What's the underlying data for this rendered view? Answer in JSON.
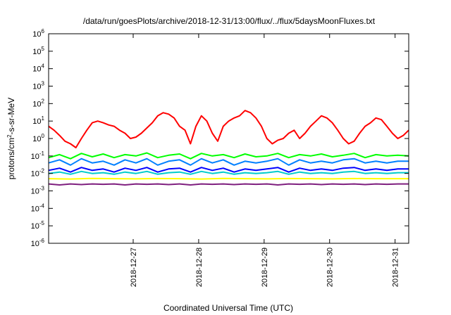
{
  "chart_data": {
    "type": "line",
    "title": "/data/run/goesPlots/archive/2018-12-31/13:00/flux/../flux/5daysMoonFluxes.txt",
    "xlabel": "Coordinated Universal Time (UTC)",
    "ylabel_parts": [
      "protons/cm",
      "2",
      "-s-sr-MeV"
    ],
    "y_scale": "log",
    "ylim": [
      1e-06,
      1000000.0
    ],
    "xlim_hours": [
      -31,
      101
    ],
    "y_ticks": [
      {
        "base": "10",
        "exp": "-6",
        "value": -6
      },
      {
        "base": "10",
        "exp": "-5",
        "value": -5
      },
      {
        "base": "10",
        "exp": "-4",
        "value": -4
      },
      {
        "base": "10",
        "exp": "-3",
        "value": -3
      },
      {
        "base": "10",
        "exp": "-2",
        "value": -2
      },
      {
        "base": "10",
        "exp": "-1",
        "value": -1
      },
      {
        "base": "10",
        "exp": "0",
        "value": 0
      },
      {
        "base": "10",
        "exp": "1",
        "value": 1
      },
      {
        "base": "10",
        "exp": "2",
        "value": 2
      },
      {
        "base": "10",
        "exp": "3",
        "value": 3
      },
      {
        "base": "10",
        "exp": "4",
        "value": 4
      },
      {
        "base": "10",
        "exp": "5",
        "value": 5
      },
      {
        "base": "10",
        "exp": "6",
        "value": 6
      }
    ],
    "x_ticks": [
      {
        "label": "2018-12-27",
        "hour": 0
      },
      {
        "label": "2018-12-28",
        "hour": 24
      },
      {
        "label": "2018-12-29",
        "hour": 48
      },
      {
        "label": "2018-12-30",
        "hour": 72
      },
      {
        "label": "2018-12-31",
        "hour": 96
      }
    ],
    "grid": false,
    "legend": "none",
    "series": [
      {
        "color": "#ff0000",
        "x": [
          -31,
          -29,
          -27,
          -25,
          -23,
          -21,
          -19,
          -17,
          -15,
          -13,
          -11,
          -9,
          -7,
          -5,
          -3,
          -1,
          1,
          3,
          5,
          7,
          9,
          11,
          13,
          15,
          17,
          19,
          21,
          23,
          25,
          27,
          29,
          31,
          33,
          35,
          37,
          39,
          41,
          43,
          45,
          47,
          49,
          51,
          53,
          55,
          57,
          59,
          61,
          63,
          65,
          67,
          69,
          71,
          73,
          75,
          77,
          79,
          81,
          83,
          85,
          87,
          89,
          91,
          93,
          95,
          97,
          99,
          101
        ],
        "y": [
          5,
          3,
          1.5,
          0.7,
          0.5,
          0.3,
          1,
          3,
          8,
          10,
          8,
          6,
          5,
          3,
          2,
          1,
          1.2,
          2,
          4,
          8,
          20,
          30,
          25,
          15,
          5,
          3,
          0.5,
          5,
          20,
          10,
          2,
          0.7,
          5,
          10,
          15,
          20,
          40,
          30,
          15,
          5,
          1,
          0.5,
          0.8,
          1,
          2,
          3,
          1,
          2,
          5,
          10,
          20,
          15,
          8,
          3,
          1,
          0.5,
          0.7,
          2,
          5,
          8,
          15,
          12,
          5,
          2,
          1,
          1.5,
          3
        ]
      },
      {
        "color": "#00ff00",
        "x": [
          -31,
          -27,
          -23,
          -19,
          -15,
          -11,
          -7,
          -3,
          1,
          5,
          9,
          13,
          17,
          21,
          25,
          29,
          33,
          37,
          41,
          45,
          49,
          53,
          57,
          61,
          65,
          69,
          73,
          77,
          81,
          85,
          89,
          93,
          97,
          101
        ],
        "y": [
          0.08,
          0.12,
          0.07,
          0.14,
          0.09,
          0.13,
          0.08,
          0.12,
          0.1,
          0.15,
          0.08,
          0.11,
          0.13,
          0.07,
          0.14,
          0.1,
          0.12,
          0.08,
          0.13,
          0.09,
          0.1,
          0.14,
          0.08,
          0.12,
          0.1,
          0.13,
          0.09,
          0.11,
          0.14,
          0.08,
          0.12,
          0.1,
          0.11,
          0.1
        ]
      },
      {
        "color": "#0080ff",
        "x": [
          -31,
          -27,
          -23,
          -19,
          -15,
          -11,
          -7,
          -3,
          1,
          5,
          9,
          13,
          17,
          21,
          25,
          29,
          33,
          37,
          41,
          45,
          49,
          53,
          57,
          61,
          65,
          69,
          73,
          77,
          81,
          85,
          89,
          93,
          97,
          101
        ],
        "y": [
          0.04,
          0.06,
          0.03,
          0.07,
          0.04,
          0.05,
          0.03,
          0.06,
          0.04,
          0.07,
          0.03,
          0.05,
          0.06,
          0.03,
          0.07,
          0.04,
          0.06,
          0.03,
          0.05,
          0.04,
          0.05,
          0.07,
          0.03,
          0.06,
          0.04,
          0.05,
          0.04,
          0.06,
          0.07,
          0.04,
          0.05,
          0.04,
          0.05,
          0.05
        ]
      },
      {
        "color": "#00cccc",
        "x": [
          -31,
          -27,
          -23,
          -19,
          -15,
          -11,
          -7,
          -3,
          1,
          5,
          9,
          13,
          17,
          21,
          25,
          29,
          33,
          37,
          41,
          45,
          49,
          53,
          57,
          61,
          65,
          69,
          73,
          77,
          81,
          85,
          89,
          93,
          97,
          101
        ],
        "y": [
          0.01,
          0.012,
          0.009,
          0.013,
          0.01,
          0.011,
          0.009,
          0.012,
          0.01,
          0.013,
          0.009,
          0.011,
          0.012,
          0.009,
          0.013,
          0.01,
          0.012,
          0.009,
          0.011,
          0.01,
          0.011,
          0.013,
          0.009,
          0.012,
          0.01,
          0.011,
          0.01,
          0.012,
          0.013,
          0.01,
          0.011,
          0.01,
          0.011,
          0.011
        ]
      },
      {
        "color": "#0000ff",
        "x": [
          -31,
          -27,
          -23,
          -19,
          -15,
          -11,
          -7,
          -3,
          1,
          5,
          9,
          13,
          17,
          21,
          25,
          29,
          33,
          37,
          41,
          45,
          49,
          53,
          57,
          61,
          65,
          69,
          73,
          77,
          81,
          85,
          89,
          93,
          97,
          101
        ],
        "y": [
          0.015,
          0.02,
          0.012,
          0.022,
          0.015,
          0.018,
          0.012,
          0.02,
          0.015,
          0.022,
          0.012,
          0.018,
          0.02,
          0.012,
          0.022,
          0.015,
          0.02,
          0.012,
          0.018,
          0.015,
          0.018,
          0.022,
          0.012,
          0.02,
          0.015,
          0.018,
          0.015,
          0.02,
          0.022,
          0.015,
          0.018,
          0.015,
          0.018,
          0.018
        ]
      },
      {
        "color": "#ffff00",
        "x": [
          -31,
          -23,
          -15,
          -7,
          1,
          9,
          17,
          25,
          33,
          41,
          49,
          57,
          65,
          73,
          81,
          89,
          97,
          101
        ],
        "y": [
          0.005,
          0.0048,
          0.0052,
          0.005,
          0.0049,
          0.0051,
          0.005,
          0.0048,
          0.0052,
          0.005,
          0.0049,
          0.0051,
          0.005,
          0.0049,
          0.0051,
          0.005,
          0.005,
          0.005
        ]
      },
      {
        "color": "#7f1f7f",
        "x": [
          -31,
          -27,
          -23,
          -19,
          -15,
          -11,
          -7,
          -3,
          1,
          5,
          9,
          13,
          17,
          21,
          25,
          29,
          33,
          37,
          41,
          45,
          49,
          53,
          57,
          61,
          65,
          69,
          73,
          77,
          81,
          85,
          89,
          93,
          97,
          101
        ],
        "y": [
          0.0025,
          0.0022,
          0.0025,
          0.0023,
          0.0025,
          0.0024,
          0.0025,
          0.0022,
          0.0025,
          0.0024,
          0.0025,
          0.0023,
          0.0025,
          0.0022,
          0.0025,
          0.0024,
          0.0025,
          0.0023,
          0.0025,
          0.0024,
          0.0025,
          0.0022,
          0.0025,
          0.0024,
          0.0025,
          0.0023,
          0.0025,
          0.0024,
          0.0025,
          0.0023,
          0.0025,
          0.0024,
          0.0025,
          0.0025
        ]
      }
    ]
  }
}
